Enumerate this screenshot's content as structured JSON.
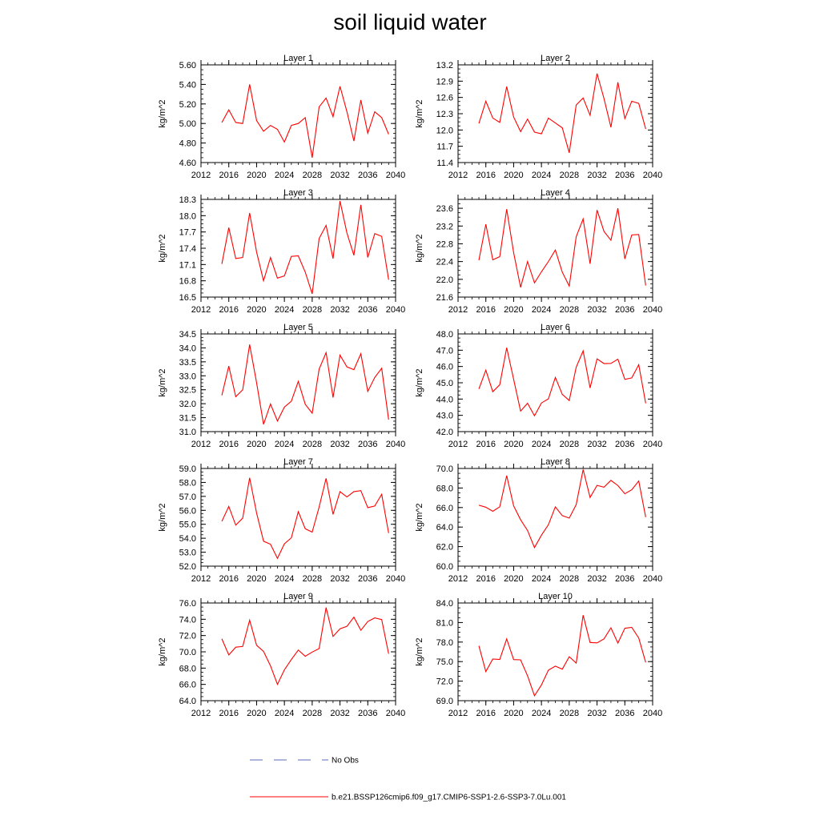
{
  "page_title": "soil liquid water",
  "legend": {
    "obs_label": "No Obs",
    "obs_color": "#5b6bbf",
    "model_label": "b.e21.BSSP126cmip6.f09_g17.CMIP6-SSP1-2.6-SSP3-7.0Lu.001",
    "model_color": "#ff0000"
  },
  "chart_data": [
    {
      "type": "line",
      "title": "Layer 1",
      "ylabel": "kg/m^2",
      "xlim": [
        2012,
        2040
      ],
      "ylim": [
        4.6,
        5.6
      ],
      "xticks": [
        "2012",
        "2016",
        "2020",
        "2024",
        "2028",
        "2032",
        "2036",
        "2040"
      ],
      "yticks": [
        "4.60",
        "4.80",
        "5.00",
        "5.20",
        "5.40",
        "5.60"
      ],
      "x": [
        2015,
        2016,
        2017,
        2018,
        2019,
        2020,
        2021,
        2022,
        2023,
        2024,
        2025,
        2026,
        2027,
        2028,
        2029,
        2030,
        2031,
        2032,
        2033,
        2034,
        2035,
        2036,
        2037,
        2038,
        2039
      ],
      "series": [
        {
          "values": [
            5.01,
            5.14,
            5.01,
            5.0,
            5.4,
            5.03,
            4.92,
            4.98,
            4.94,
            4.81,
            4.98,
            5.0,
            5.06,
            4.65,
            5.17,
            5.26,
            5.07,
            5.38,
            5.12,
            4.82,
            5.24,
            4.9,
            5.12,
            5.06,
            4.89
          ]
        }
      ]
    },
    {
      "type": "line",
      "title": "Layer 2",
      "ylabel": "kg/m^2",
      "xlim": [
        2012,
        2040
      ],
      "ylim": [
        11.4,
        13.2
      ],
      "xticks": [
        "2012",
        "2016",
        "2020",
        "2024",
        "2028",
        "2032",
        "2036",
        "2040"
      ],
      "yticks": [
        "11.4",
        "11.7",
        "12.0",
        "12.3",
        "12.6",
        "12.9",
        "13.2"
      ],
      "x": [
        2015,
        2016,
        2017,
        2018,
        2019,
        2020,
        2021,
        2022,
        2023,
        2024,
        2025,
        2026,
        2027,
        2028,
        2029,
        2030,
        2031,
        2032,
        2033,
        2034,
        2035,
        2036,
        2037,
        2038,
        2039
      ],
      "series": [
        {
          "values": [
            12.12,
            12.53,
            12.22,
            12.14,
            12.8,
            12.24,
            11.97,
            12.2,
            11.96,
            11.93,
            12.22,
            12.13,
            12.04,
            11.58,
            12.46,
            12.59,
            12.27,
            13.04,
            12.58,
            12.05,
            12.88,
            12.21,
            12.53,
            12.49,
            12.02
          ]
        }
      ]
    },
    {
      "type": "line",
      "title": "Layer 3",
      "ylabel": "kg/m^2",
      "xlim": [
        2012,
        2040
      ],
      "ylim": [
        16.5,
        18.3
      ],
      "xticks": [
        "2012",
        "2016",
        "2020",
        "2024",
        "2028",
        "2032",
        "2036",
        "2040"
      ],
      "yticks": [
        "16.5",
        "16.8",
        "17.1",
        "17.4",
        "17.7",
        "18.0",
        "18.3"
      ],
      "x": [
        2015,
        2016,
        2017,
        2018,
        2019,
        2020,
        2021,
        2022,
        2023,
        2024,
        2025,
        2026,
        2027,
        2028,
        2029,
        2030,
        2031,
        2032,
        2033,
        2034,
        2035,
        2036,
        2037,
        2038,
        2039
      ],
      "series": [
        {
          "values": [
            17.11,
            17.78,
            17.21,
            17.23,
            18.05,
            17.33,
            16.8,
            17.23,
            16.85,
            16.89,
            17.25,
            17.26,
            16.96,
            16.56,
            17.58,
            17.82,
            17.21,
            18.27,
            17.68,
            17.27,
            18.2,
            17.23,
            17.67,
            17.62,
            16.82
          ]
        }
      ]
    },
    {
      "type": "line",
      "title": "Layer 4",
      "ylabel": "kg/m^2",
      "xlim": [
        2012,
        2040
      ],
      "ylim": [
        21.6,
        23.8
      ],
      "xticks": [
        "2012",
        "2016",
        "2020",
        "2024",
        "2028",
        "2032",
        "2036",
        "2040"
      ],
      "yticks": [
        "21.6",
        "22.0",
        "22.4",
        "22.8",
        "23.2",
        "23.6"
      ],
      "x": [
        2015,
        2016,
        2017,
        2018,
        2019,
        2020,
        2021,
        2022,
        2023,
        2024,
        2025,
        2026,
        2027,
        2028,
        2029,
        2030,
        2031,
        2032,
        2033,
        2034,
        2035,
        2036,
        2037,
        2038,
        2039
      ],
      "series": [
        {
          "values": [
            22.43,
            23.24,
            22.44,
            22.51,
            23.58,
            22.6,
            21.82,
            22.4,
            21.92,
            22.17,
            22.4,
            22.66,
            22.16,
            21.85,
            22.96,
            23.36,
            22.35,
            23.56,
            23.08,
            22.88,
            23.6,
            22.46,
            23.0,
            23.01,
            21.86
          ]
        }
      ]
    },
    {
      "type": "line",
      "title": "Layer 5",
      "ylabel": "kg/m^2",
      "xlim": [
        2012,
        2040
      ],
      "ylim": [
        31.0,
        34.5
      ],
      "xticks": [
        "2012",
        "2016",
        "2020",
        "2024",
        "2028",
        "2032",
        "2036",
        "2040"
      ],
      "yticks": [
        "31.0",
        "31.5",
        "32.0",
        "32.5",
        "33.0",
        "33.5",
        "34.0",
        "34.5"
      ],
      "x": [
        2015,
        2016,
        2017,
        2018,
        2019,
        2020,
        2021,
        2022,
        2023,
        2024,
        2025,
        2026,
        2027,
        2028,
        2029,
        2030,
        2031,
        2032,
        2033,
        2034,
        2035,
        2036,
        2037,
        2038,
        2039
      ],
      "series": [
        {
          "values": [
            32.3,
            33.35,
            32.25,
            32.5,
            34.12,
            32.75,
            31.26,
            31.99,
            31.38,
            31.88,
            32.09,
            32.8,
            31.98,
            31.66,
            33.24,
            33.83,
            32.22,
            33.74,
            33.32,
            33.22,
            33.79,
            32.44,
            32.94,
            33.27,
            31.43
          ]
        }
      ]
    },
    {
      "type": "line",
      "title": "Layer 6",
      "ylabel": "kg/m^2",
      "xlim": [
        2012,
        2040
      ],
      "ylim": [
        42.0,
        48.0
      ],
      "xticks": [
        "2012",
        "2016",
        "2020",
        "2024",
        "2028",
        "2032",
        "2036",
        "2040"
      ],
      "yticks": [
        "42.0",
        "43.0",
        "44.0",
        "45.0",
        "46.0",
        "47.0",
        "48.0"
      ],
      "x": [
        2015,
        2016,
        2017,
        2018,
        2019,
        2020,
        2021,
        2022,
        2023,
        2024,
        2025,
        2026,
        2027,
        2028,
        2029,
        2030,
        2031,
        2032,
        2033,
        2034,
        2035,
        2036,
        2037,
        2038,
        2039
      ],
      "series": [
        {
          "values": [
            44.62,
            45.77,
            44.45,
            44.88,
            47.15,
            45.21,
            43.26,
            43.74,
            42.97,
            43.76,
            44.01,
            45.33,
            44.29,
            43.91,
            45.96,
            46.96,
            44.68,
            46.47,
            46.18,
            46.19,
            46.45,
            45.21,
            45.3,
            46.11,
            43.74
          ]
        }
      ]
    },
    {
      "type": "line",
      "title": "Layer 7",
      "ylabel": "kg/m^2",
      "xlim": [
        2012,
        2040
      ],
      "ylim": [
        52.0,
        59.0
      ],
      "xticks": [
        "2012",
        "2016",
        "2020",
        "2024",
        "2028",
        "2032",
        "2036",
        "2040"
      ],
      "yticks": [
        "52.0",
        "53.0",
        "54.0",
        "55.0",
        "56.0",
        "57.0",
        "58.0",
        "59.0"
      ],
      "x": [
        2015,
        2016,
        2017,
        2018,
        2019,
        2020,
        2021,
        2022,
        2023,
        2024,
        2025,
        2026,
        2027,
        2028,
        2029,
        2030,
        2031,
        2032,
        2033,
        2034,
        2035,
        2036,
        2037,
        2038,
        2039
      ],
      "series": [
        {
          "values": [
            55.21,
            56.28,
            54.94,
            55.44,
            58.33,
            55.81,
            53.79,
            53.57,
            52.56,
            53.6,
            54.03,
            55.9,
            54.68,
            54.44,
            56.24,
            58.29,
            55.71,
            57.34,
            56.96,
            57.34,
            57.41,
            56.19,
            56.31,
            57.15,
            54.37
          ]
        }
      ]
    },
    {
      "type": "line",
      "title": "Layer 8",
      "ylabel": "kg/m^2",
      "xlim": [
        2012,
        2040
      ],
      "ylim": [
        60.0,
        70.0
      ],
      "xticks": [
        "2012",
        "2016",
        "2020",
        "2024",
        "2028",
        "2032",
        "2036",
        "2040"
      ],
      "yticks": [
        "60.0",
        "62.0",
        "64.0",
        "66.0",
        "68.0",
        "70.0"
      ],
      "x": [
        2015,
        2016,
        2017,
        2018,
        2019,
        2020,
        2021,
        2022,
        2023,
        2024,
        2025,
        2026,
        2027,
        2028,
        2029,
        2030,
        2031,
        2032,
        2033,
        2034,
        2035,
        2036,
        2037,
        2038,
        2039
      ],
      "series": [
        {
          "values": [
            66.24,
            66.03,
            65.62,
            66.07,
            69.26,
            66.17,
            64.75,
            63.65,
            61.9,
            63.17,
            64.24,
            66.07,
            65.17,
            64.92,
            66.3,
            69.89,
            67.03,
            68.27,
            68.08,
            68.78,
            68.25,
            67.41,
            67.82,
            68.72,
            65.02
          ]
        }
      ]
    },
    {
      "type": "line",
      "title": "Layer 9",
      "ylabel": "kg/m^2",
      "xlim": [
        2012,
        2040
      ],
      "ylim": [
        64.0,
        76.0
      ],
      "xticks": [
        "2012",
        "2016",
        "2020",
        "2024",
        "2028",
        "2032",
        "2036",
        "2040"
      ],
      "yticks": [
        "64.0",
        "66.0",
        "68.0",
        "70.0",
        "72.0",
        "74.0",
        "76.0"
      ],
      "x": [
        2015,
        2016,
        2017,
        2018,
        2019,
        2020,
        2021,
        2022,
        2023,
        2024,
        2025,
        2026,
        2027,
        2028,
        2029,
        2030,
        2031,
        2032,
        2033,
        2034,
        2035,
        2036,
        2037,
        2038,
        2039
      ],
      "series": [
        {
          "values": [
            71.6,
            69.62,
            70.57,
            70.66,
            73.89,
            70.81,
            70.05,
            68.28,
            66.01,
            67.79,
            69.06,
            70.22,
            69.45,
            69.97,
            70.41,
            75.44,
            71.89,
            72.83,
            73.13,
            74.26,
            72.65,
            73.72,
            74.17,
            73.96,
            69.76
          ]
        }
      ]
    },
    {
      "type": "line",
      "title": "Layer 10",
      "ylabel": "kg/m^2",
      "xlim": [
        2012,
        2040
      ],
      "ylim": [
        69.0,
        84.0
      ],
      "xticks": [
        "2012",
        "2016",
        "2020",
        "2024",
        "2028",
        "2032",
        "2036",
        "2040"
      ],
      "yticks": [
        "69.0",
        "72.0",
        "75.0",
        "78.0",
        "81.0",
        "84.0"
      ],
      "x": [
        2015,
        2016,
        2017,
        2018,
        2019,
        2020,
        2021,
        2022,
        2023,
        2024,
        2025,
        2026,
        2027,
        2028,
        2029,
        2030,
        2031,
        2032,
        2033,
        2034,
        2035,
        2036,
        2037,
        2038,
        2039
      ],
      "series": [
        {
          "values": [
            77.43,
            73.47,
            75.4,
            75.33,
            78.48,
            75.31,
            75.27,
            72.82,
            69.75,
            71.42,
            73.68,
            74.3,
            73.84,
            75.75,
            74.78,
            82.13,
            77.94,
            77.87,
            78.49,
            80.19,
            77.84,
            80.12,
            80.25,
            78.63,
            74.88
          ]
        }
      ]
    }
  ]
}
